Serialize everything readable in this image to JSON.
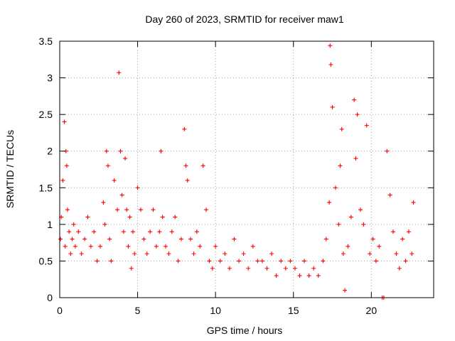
{
  "chart_data": {
    "type": "scatter",
    "title": "Day 260 of 2023, SRMTID for receiver maw1",
    "xlabel": "GPS time / hours",
    "ylabel": "SRMTID / TECUs",
    "xlim": [
      0,
      24
    ],
    "ylim": [
      0,
      3.5
    ],
    "xticks": [
      0,
      5,
      10,
      15,
      20
    ],
    "yticks": [
      0,
      0.5,
      1,
      1.5,
      2,
      2.5,
      3,
      3.5
    ],
    "xtick_labels": [
      "0",
      "5",
      "10",
      "15",
      "20"
    ],
    "ytick_labels": [
      "0",
      "0.5",
      "1",
      "1.5",
      "2",
      "2.5",
      "3",
      "3.5"
    ],
    "grid": true,
    "marker": "plus",
    "color": "#ff0000",
    "series": [
      {
        "name": "maw1",
        "x": [
          0.05,
          0.1,
          0.2,
          0.3,
          0.35,
          0.4,
          0.45,
          0.5,
          0.6,
          0.7,
          0.8,
          0.9,
          1.0,
          1.2,
          1.4,
          1.6,
          1.8,
          2.0,
          2.2,
          2.4,
          2.6,
          2.8,
          2.9,
          3.0,
          3.1,
          3.2,
          3.3,
          3.5,
          3.7,
          3.8,
          3.9,
          4.0,
          4.1,
          4.2,
          4.3,
          4.4,
          4.5,
          4.6,
          4.7,
          4.8,
          5.0,
          5.2,
          5.4,
          5.6,
          5.8,
          6.0,
          6.2,
          6.4,
          6.5,
          6.6,
          6.8,
          7.0,
          7.2,
          7.4,
          7.6,
          7.8,
          8.0,
          8.1,
          8.2,
          8.4,
          8.6,
          8.8,
          9.0,
          9.2,
          9.4,
          9.6,
          9.8,
          10.0,
          10.3,
          10.6,
          10.9,
          11.2,
          11.5,
          11.8,
          12.1,
          12.4,
          12.7,
          13.0,
          13.3,
          13.6,
          13.9,
          14.2,
          14.5,
          14.8,
          15.1,
          15.4,
          15.7,
          16.0,
          16.3,
          16.6,
          16.9,
          17.1,
          17.3,
          17.35,
          17.4,
          17.5,
          17.7,
          17.9,
          18.0,
          18.1,
          18.2,
          18.3,
          18.5,
          18.7,
          18.9,
          19.0,
          19.1,
          19.3,
          19.5,
          19.7,
          19.9,
          20.1,
          20.3,
          20.5,
          20.7,
          20.8,
          21.0,
          21.2,
          21.4,
          21.6,
          21.8,
          22.0,
          22.2,
          22.4,
          22.6,
          22.7
        ],
        "y": [
          0.8,
          1.1,
          1.6,
          2.4,
          0.7,
          2.0,
          1.8,
          1.2,
          0.9,
          0.6,
          0.8,
          1.0,
          0.7,
          0.9,
          0.6,
          0.8,
          1.1,
          0.7,
          0.9,
          0.5,
          0.7,
          1.3,
          1.0,
          2.0,
          1.8,
          0.8,
          0.5,
          1.6,
          1.2,
          3.07,
          2.0,
          1.4,
          0.9,
          1.9,
          1.2,
          0.7,
          1.1,
          0.4,
          0.9,
          0.6,
          1.5,
          1.2,
          0.8,
          0.6,
          0.9,
          1.2,
          0.7,
          0.9,
          2.0,
          1.1,
          0.7,
          0.6,
          0.9,
          1.1,
          0.5,
          0.8,
          2.3,
          1.8,
          1.6,
          0.8,
          0.6,
          0.9,
          0.7,
          1.8,
          1.2,
          0.5,
          0.4,
          0.7,
          0.5,
          0.6,
          0.4,
          0.8,
          0.5,
          0.6,
          0.4,
          0.7,
          0.5,
          0.5,
          0.4,
          0.6,
          0.3,
          0.5,
          0.4,
          0.5,
          0.4,
          0.3,
          0.5,
          0.3,
          0.4,
          0.3,
          0.5,
          0.8,
          1.3,
          3.44,
          3.18,
          2.6,
          1.5,
          1.0,
          1.8,
          2.3,
          0.6,
          0.1,
          0.7,
          1.1,
          2.7,
          1.9,
          2.5,
          1.2,
          1.0,
          2.35,
          0.6,
          0.8,
          0.5,
          0.7,
          0.0,
          0.0,
          2.0,
          1.4,
          0.9,
          0.6,
          0.4,
          0.8,
          0.5,
          0.9,
          0.6,
          1.3
        ]
      }
    ]
  }
}
